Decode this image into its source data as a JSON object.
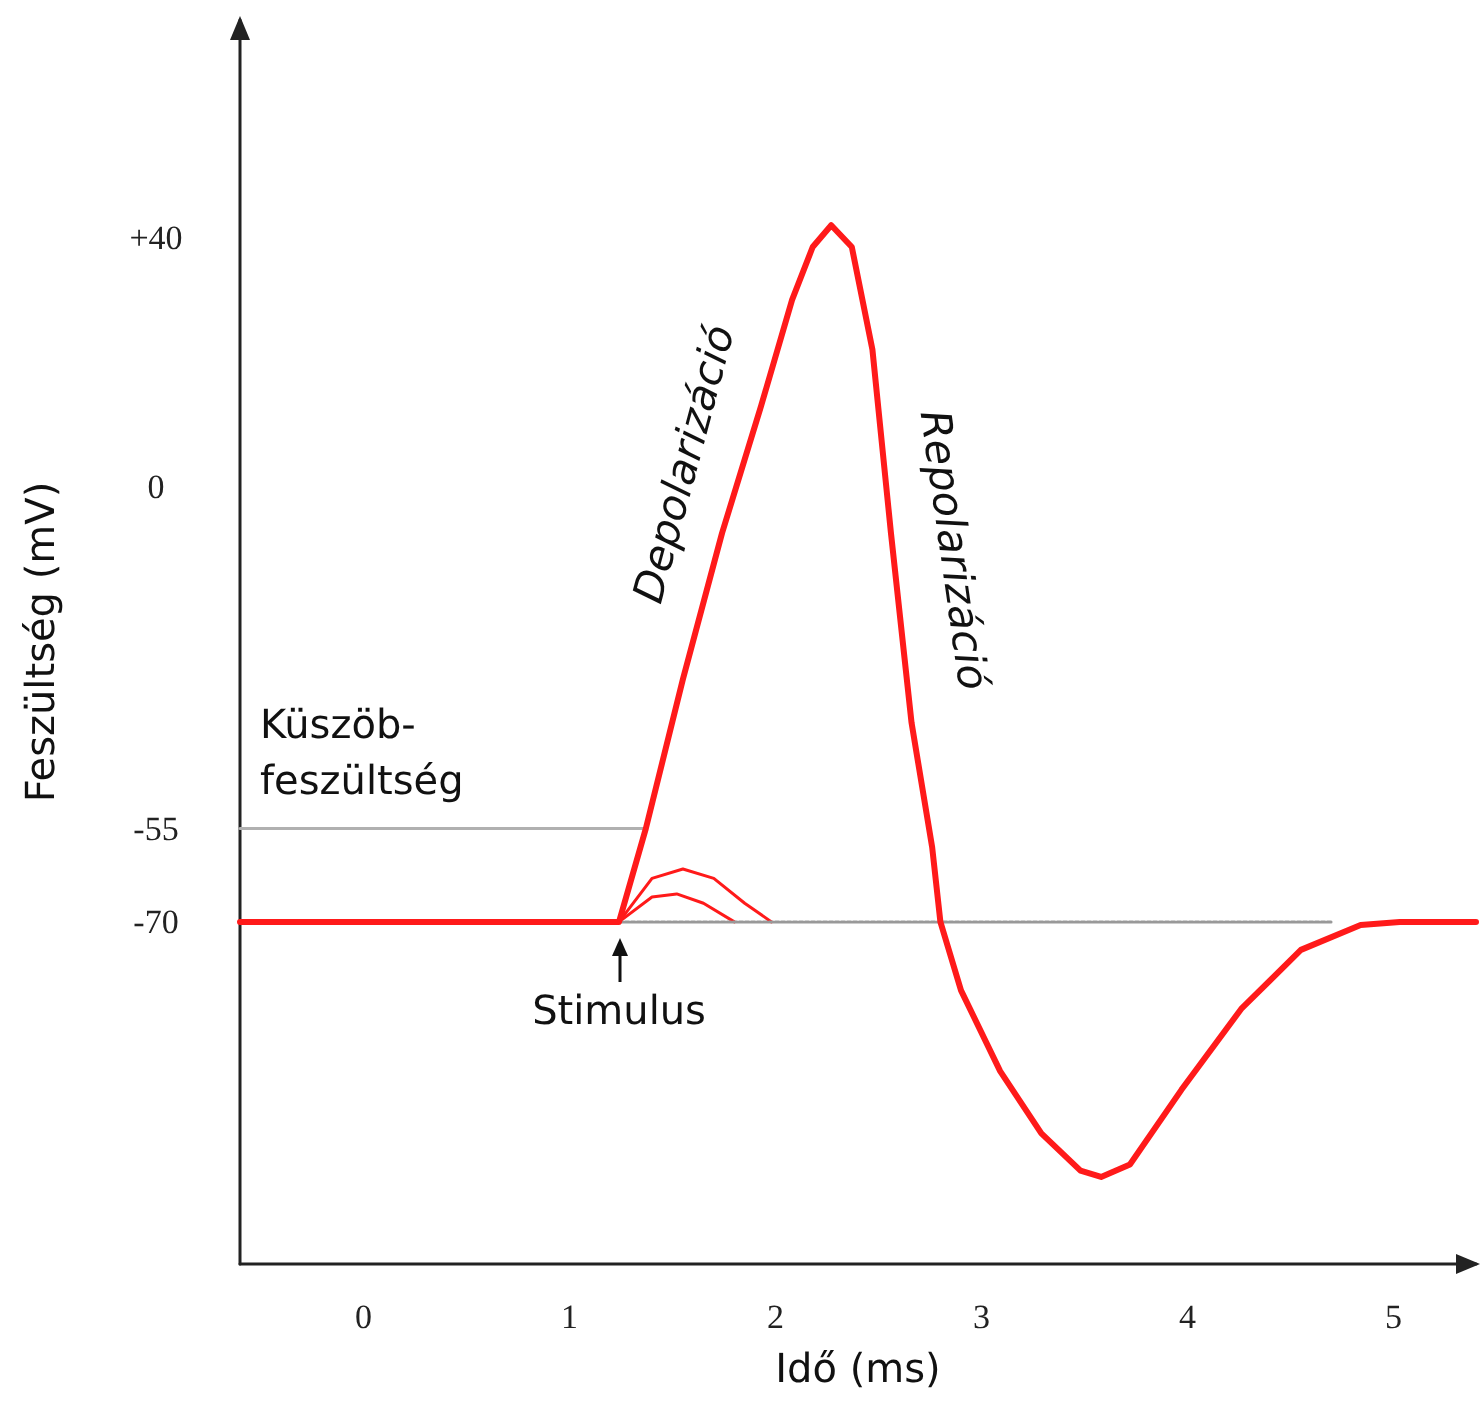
{
  "chart_data": {
    "type": "line",
    "xlabel": "Idő (ms)",
    "ylabel": "Feszültség (mV)",
    "xlim": [
      -0.6,
      5.4
    ],
    "ylim": [
      -125,
      75
    ],
    "xticks": [
      0,
      1,
      2,
      3,
      4,
      5
    ],
    "yticks": [
      {
        "value": 40,
        "label": "+40"
      },
      0,
      -55,
      -70
    ],
    "grid": false,
    "marker": "none",
    "series": [
      {
        "color": "#ff1a1a",
        "x": [
          -0.6,
          1.24,
          1.37,
          1.55,
          1.74,
          1.93,
          2.08,
          2.18,
          2.27,
          2.37,
          2.47,
          2.56,
          2.66,
          2.76,
          2.8,
          2.9,
          3.09,
          3.29,
          3.48,
          3.58,
          3.72,
          3.97,
          4.26,
          4.55,
          4.84,
          5.03,
          5.4
        ],
        "values": [
          -70,
          -70,
          -55,
          -31,
          -7.5,
          13,
          30,
          38.5,
          42,
          38.5,
          22,
          -7.5,
          -38,
          -58,
          -70,
          -81,
          -94,
          -104,
          -110,
          -111,
          -109,
          -97,
          -84,
          -74.5,
          -70.5,
          -70,
          -70
        ]
      },
      {
        "color": "#ff1a1a",
        "x": [
          1.24,
          1.4,
          1.55,
          1.7,
          1.85,
          1.98
        ],
        "values": [
          -70,
          -63,
          -61.5,
          -63,
          -67,
          -70
        ]
      },
      {
        "color": "#ff1a1a",
        "x": [
          1.24,
          1.4,
          1.52,
          1.65,
          1.8
        ],
        "values": [
          -70,
          -66,
          -65.5,
          -67,
          -70
        ]
      },
      {
        "color": "#b0b0b0",
        "x": [
          -0.6,
          1.37
        ],
        "values": [
          -55,
          -55
        ]
      },
      {
        "color": "#999999",
        "line_style": "dotted",
        "x": [
          1.24,
          4.7
        ],
        "values": [
          -70,
          -70
        ]
      }
    ],
    "annotations": [
      "Küszöb-\nfeszültség",
      "Depolarizáció",
      "Repolarizáció",
      {
        "text": "Stimulus",
        "x": 1.24,
        "y": -70
      }
    ]
  }
}
